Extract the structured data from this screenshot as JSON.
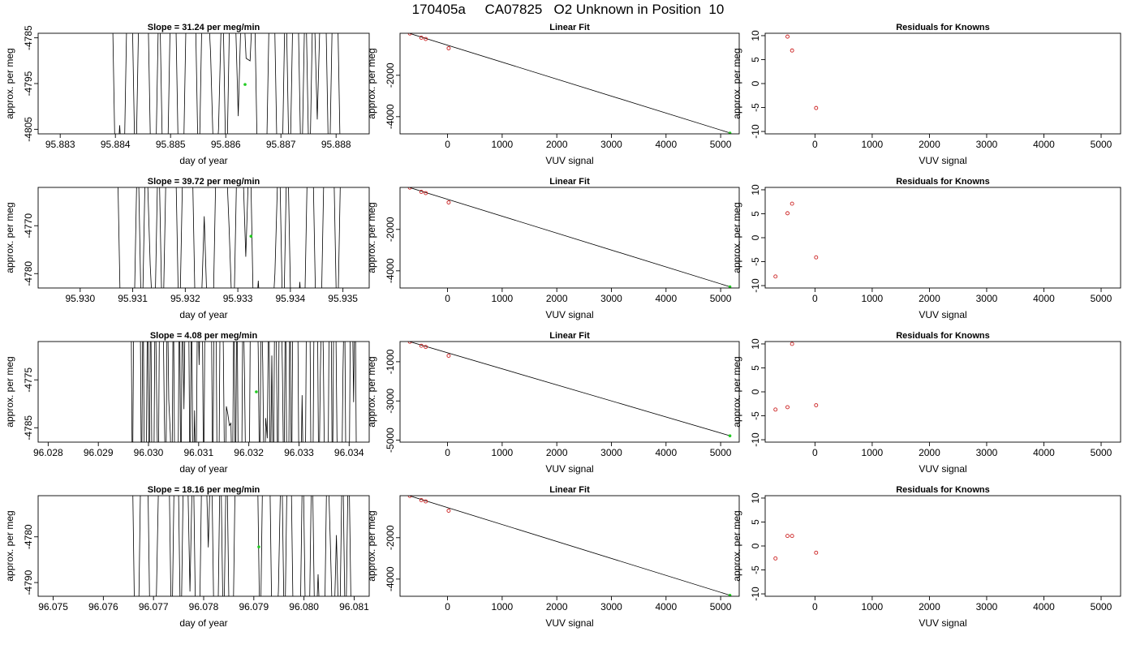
{
  "figure": {
    "title": "170405a     CA07825   O2 Unknown in Position  10"
  },
  "chart_data": [
    {
      "type": "line",
      "title": "Slope =  31.24  per meg/min",
      "xlabel": "day of year",
      "ylabel": "approx. per meg",
      "xlim": [
        95.8826,
        95.8886
      ],
      "ylim": [
        -4806,
        -4784
      ],
      "xticks": [
        {
          "v": 95.883,
          "label": "95.883"
        },
        {
          "v": 95.884,
          "label": "95.884"
        },
        {
          "v": 95.885,
          "label": "95.885"
        },
        {
          "v": 95.886,
          "label": "95.886"
        },
        {
          "v": 95.887,
          "label": "95.887"
        },
        {
          "v": 95.888,
          "label": "95.888"
        }
      ],
      "yticks": [
        {
          "v": -4785,
          "label": "-4785"
        },
        {
          "v": -4795,
          "label": "-4795"
        },
        {
          "v": -4805,
          "label": "-4805"
        }
      ],
      "trace_x_range": [
        95.88372,
        95.88816
      ],
      "trace_segments": 62,
      "trace_seed": 11,
      "marker": {
        "x": 95.88635,
        "y": -4795.2,
        "color": "#22cc22"
      }
    },
    {
      "type": "scatter",
      "title": "Linear Fit",
      "xlabel": "VUV signal",
      "ylabel": "approx. per meg",
      "xlim": [
        -870,
        5340
      ],
      "ylim": [
        -4830,
        30
      ],
      "xticks": [
        {
          "v": 0,
          "label": "0"
        },
        {
          "v": 1000,
          "label": "1000"
        },
        {
          "v": 2000,
          "label": "2000"
        },
        {
          "v": 3000,
          "label": "3000"
        },
        {
          "v": 4000,
          "label": "4000"
        },
        {
          "v": 5000,
          "label": "5000"
        }
      ],
      "yticks": [
        {
          "v": -2000,
          "label": "-2000"
        },
        {
          "v": -4000,
          "label": "-4000"
        }
      ],
      "points": [
        {
          "x": -690,
          "y": 20
        },
        {
          "x": -480,
          "y": -185
        },
        {
          "x": -400,
          "y": -245
        },
        {
          "x": 20,
          "y": -695
        }
      ],
      "fit_line": [
        {
          "x": -690,
          "y": 20
        },
        {
          "x": 5170,
          "y": -4785
        }
      ],
      "unknown": {
        "x": 5170,
        "y": -4795
      }
    },
    {
      "type": "scatter",
      "title": "Residuals for Knowns",
      "xlabel": "VUV signal",
      "ylabel": "approx. per meg",
      "xlim": [
        -870,
        5340
      ],
      "ylim": [
        -10.5,
        10.5
      ],
      "xticks": [
        {
          "v": 0,
          "label": "0"
        },
        {
          "v": 1000,
          "label": "1000"
        },
        {
          "v": 2000,
          "label": "2000"
        },
        {
          "v": 3000,
          "label": "3000"
        },
        {
          "v": 4000,
          "label": "4000"
        },
        {
          "v": 5000,
          "label": "5000"
        }
      ],
      "yticks": [
        {
          "v": 10,
          "label": "10"
        },
        {
          "v": 5,
          "label": "5"
        },
        {
          "v": 0,
          "label": "0"
        },
        {
          "v": -5,
          "label": "-5"
        },
        {
          "v": -10,
          "label": "-10"
        }
      ],
      "points": [
        {
          "x": -480,
          "y": 9.8
        },
        {
          "x": -400,
          "y": 6.9
        },
        {
          "x": 20,
          "y": -5.1
        }
      ]
    },
    {
      "type": "line",
      "title": "Slope =  39.72  per meg/min",
      "xlabel": "day of year",
      "ylabel": "approx. per meg",
      "xlim": [
        95.9292,
        95.9355
      ],
      "ylim": [
        -4783,
        -4762
      ],
      "xticks": [
        {
          "v": 95.93,
          "label": "95.930"
        },
        {
          "v": 95.931,
          "label": "95.931"
        },
        {
          "v": 95.932,
          "label": "95.932"
        },
        {
          "v": 95.933,
          "label": "95.933"
        },
        {
          "v": 95.934,
          "label": "95.934"
        },
        {
          "v": 95.935,
          "label": "95.935"
        }
      ],
      "yticks": [
        {
          "v": -4770,
          "label": "-4770"
        },
        {
          "v": -4780,
          "label": "-4780"
        }
      ],
      "trace_x_range": [
        95.93062,
        95.93505
      ],
      "trace_segments": 56,
      "trace_seed": 23,
      "marker": {
        "x": 95.93325,
        "y": -4772.2,
        "color": "#22cc22"
      }
    },
    {
      "type": "scatter",
      "title": "Linear Fit",
      "xlabel": "VUV signal",
      "ylabel": "approx. per meg",
      "xlim": [
        -870,
        5340
      ],
      "ylim": [
        -4830,
        30
      ],
      "xticks": [
        {
          "v": 0,
          "label": "0"
        },
        {
          "v": 1000,
          "label": "1000"
        },
        {
          "v": 2000,
          "label": "2000"
        },
        {
          "v": 3000,
          "label": "3000"
        },
        {
          "v": 4000,
          "label": "4000"
        },
        {
          "v": 5000,
          "label": "5000"
        }
      ],
      "yticks": [
        {
          "v": -2000,
          "label": "-2000"
        },
        {
          "v": -4000,
          "label": "-4000"
        }
      ],
      "points": [
        {
          "x": -690,
          "y": 20
        },
        {
          "x": -480,
          "y": -185
        },
        {
          "x": -400,
          "y": -245
        },
        {
          "x": 20,
          "y": -695
        }
      ],
      "fit_line": [
        {
          "x": -690,
          "y": 20
        },
        {
          "x": 5170,
          "y": -4770
        }
      ],
      "unknown": {
        "x": 5170,
        "y": -4772
      }
    },
    {
      "type": "scatter",
      "title": "Residuals for Knowns",
      "xlabel": "VUV signal",
      "ylabel": "approx. per meg",
      "xlim": [
        -870,
        5340
      ],
      "ylim": [
        -10.5,
        10.5
      ],
      "xticks": [
        {
          "v": 0,
          "label": "0"
        },
        {
          "v": 1000,
          "label": "1000"
        },
        {
          "v": 2000,
          "label": "2000"
        },
        {
          "v": 3000,
          "label": "3000"
        },
        {
          "v": 4000,
          "label": "4000"
        },
        {
          "v": 5000,
          "label": "5000"
        }
      ],
      "yticks": [
        {
          "v": 10,
          "label": "10"
        },
        {
          "v": 5,
          "label": "5"
        },
        {
          "v": 0,
          "label": "0"
        },
        {
          "v": -5,
          "label": "-5"
        },
        {
          "v": -10,
          "label": "-10"
        }
      ],
      "points": [
        {
          "x": -690,
          "y": -8.1
        },
        {
          "x": -480,
          "y": 5.1
        },
        {
          "x": -400,
          "y": 7.1
        },
        {
          "x": 20,
          "y": -4.1
        }
      ]
    },
    {
      "type": "line",
      "title": "Slope =  4.08  per meg/min",
      "xlabel": "day of year",
      "ylabel": "approx. per meg",
      "xlim": [
        96.0278,
        96.0344
      ],
      "ylim": [
        -4788,
        -4767
      ],
      "xticks": [
        {
          "v": 96.028,
          "label": "96.028"
        },
        {
          "v": 96.029,
          "label": "96.029"
        },
        {
          "v": 96.03,
          "label": "96.030"
        },
        {
          "v": 96.031,
          "label": "96.031"
        },
        {
          "v": 96.032,
          "label": "96.032"
        },
        {
          "v": 96.033,
          "label": "96.033"
        },
        {
          "v": 96.034,
          "label": "96.034"
        }
      ],
      "yticks": [
        {
          "v": -4775,
          "label": "-4775"
        },
        {
          "v": -4785,
          "label": "-4785"
        }
      ],
      "trace_x_range": [
        96.02965,
        96.03418
      ],
      "trace_segments": 150,
      "trace_seed": 37,
      "marker": {
        "x": 96.03215,
        "y": -4777.5,
        "color": "#22cc22"
      }
    },
    {
      "type": "scatter",
      "title": "Linear Fit",
      "xlabel": "VUV signal",
      "ylabel": "approx. per meg",
      "xlim": [
        -870,
        5340
      ],
      "ylim": [
        -5100,
        30
      ],
      "xticks": [
        {
          "v": 0,
          "label": "0"
        },
        {
          "v": 1000,
          "label": "1000"
        },
        {
          "v": 2000,
          "label": "2000"
        },
        {
          "v": 3000,
          "label": "3000"
        },
        {
          "v": 4000,
          "label": "4000"
        },
        {
          "v": 5000,
          "label": "5000"
        }
      ],
      "yticks": [
        {
          "v": -1000,
          "label": "-1000"
        },
        {
          "v": -3000,
          "label": "-3000"
        },
        {
          "v": -5000,
          "label": "-5000"
        }
      ],
      "points": [
        {
          "x": -690,
          "y": 20
        },
        {
          "x": -480,
          "y": -185
        },
        {
          "x": -400,
          "y": -245
        },
        {
          "x": 20,
          "y": -695
        }
      ],
      "fit_line": [
        {
          "x": -690,
          "y": 20
        },
        {
          "x": 5170,
          "y": -4775
        }
      ],
      "unknown": {
        "x": 5170,
        "y": -4777
      }
    },
    {
      "type": "scatter",
      "title": "Residuals for Knowns",
      "xlabel": "VUV signal",
      "ylabel": "approx. per meg",
      "xlim": [
        -870,
        5340
      ],
      "ylim": [
        -10.5,
        10.5
      ],
      "xticks": [
        {
          "v": 0,
          "label": "0"
        },
        {
          "v": 1000,
          "label": "1000"
        },
        {
          "v": 2000,
          "label": "2000"
        },
        {
          "v": 3000,
          "label": "3000"
        },
        {
          "v": 4000,
          "label": "4000"
        },
        {
          "v": 5000,
          "label": "5000"
        }
      ],
      "yticks": [
        {
          "v": 10,
          "label": "10"
        },
        {
          "v": 5,
          "label": "5"
        },
        {
          "v": 0,
          "label": "0"
        },
        {
          "v": -5,
          "label": "-5"
        },
        {
          "v": -10,
          "label": "-10"
        }
      ],
      "points": [
        {
          "x": -690,
          "y": -3.7
        },
        {
          "x": -480,
          "y": -3.2
        },
        {
          "x": -400,
          "y": 10.0
        },
        {
          "x": 20,
          "y": -2.8
        }
      ]
    },
    {
      "type": "line",
      "title": "Slope =  18.16  per meg/min",
      "xlabel": "day of year",
      "ylabel": "approx. per meg",
      "xlim": [
        96.0747,
        96.0813
      ],
      "ylim": [
        -4793,
        -4771
      ],
      "xticks": [
        {
          "v": 96.075,
          "label": "96.075"
        },
        {
          "v": 96.076,
          "label": "96.076"
        },
        {
          "v": 96.077,
          "label": "96.077"
        },
        {
          "v": 96.078,
          "label": "96.078"
        },
        {
          "v": 96.079,
          "label": "96.079"
        },
        {
          "v": 96.08,
          "label": "96.080"
        },
        {
          "v": 96.081,
          "label": "96.081"
        }
      ],
      "yticks": [
        {
          "v": -4780,
          "label": "-4780"
        },
        {
          "v": -4790,
          "label": "-4790"
        }
      ],
      "trace_x_range": [
        96.07645,
        96.08095
      ],
      "trace_segments": 74,
      "trace_seed": 53,
      "marker": {
        "x": 96.0791,
        "y": -4782.2,
        "color": "#22cc22"
      }
    },
    {
      "type": "scatter",
      "title": "Linear Fit",
      "xlabel": "VUV signal",
      "ylabel": "approx. per meg",
      "xlim": [
        -870,
        5340
      ],
      "ylim": [
        -4830,
        30
      ],
      "xticks": [
        {
          "v": 0,
          "label": "0"
        },
        {
          "v": 1000,
          "label": "1000"
        },
        {
          "v": 2000,
          "label": "2000"
        },
        {
          "v": 3000,
          "label": "3000"
        },
        {
          "v": 4000,
          "label": "4000"
        },
        {
          "v": 5000,
          "label": "5000"
        }
      ],
      "yticks": [
        {
          "v": -2000,
          "label": "-2000"
        },
        {
          "v": -4000,
          "label": "-4000"
        }
      ],
      "points": [
        {
          "x": -690,
          "y": 20
        },
        {
          "x": -480,
          "y": -185
        },
        {
          "x": -400,
          "y": -245
        },
        {
          "x": 20,
          "y": -695
        }
      ],
      "fit_line": [
        {
          "x": -690,
          "y": 20
        },
        {
          "x": 5170,
          "y": -4780
        }
      ],
      "unknown": {
        "x": 5170,
        "y": -4782
      }
    },
    {
      "type": "scatter",
      "title": "Residuals for Knowns",
      "xlabel": "VUV signal",
      "ylabel": "approx. per meg",
      "xlim": [
        -870,
        5340
      ],
      "ylim": [
        -10.5,
        10.5
      ],
      "xticks": [
        {
          "v": 0,
          "label": "0"
        },
        {
          "v": 1000,
          "label": "1000"
        },
        {
          "v": 2000,
          "label": "2000"
        },
        {
          "v": 3000,
          "label": "3000"
        },
        {
          "v": 4000,
          "label": "4000"
        },
        {
          "v": 5000,
          "label": "5000"
        }
      ],
      "yticks": [
        {
          "v": 10,
          "label": "10"
        },
        {
          "v": 5,
          "label": "5"
        },
        {
          "v": 0,
          "label": "0"
        },
        {
          "v": -5,
          "label": "-5"
        },
        {
          "v": -10,
          "label": "-10"
        }
      ],
      "points": [
        {
          "x": -690,
          "y": -2.6
        },
        {
          "x": -480,
          "y": 2.1
        },
        {
          "x": -400,
          "y": 2.1
        },
        {
          "x": 20,
          "y": -1.4
        }
      ]
    }
  ],
  "colors": {
    "known_points": "#cc2222",
    "unknown_point": "#22cc22",
    "line": "#000000"
  }
}
